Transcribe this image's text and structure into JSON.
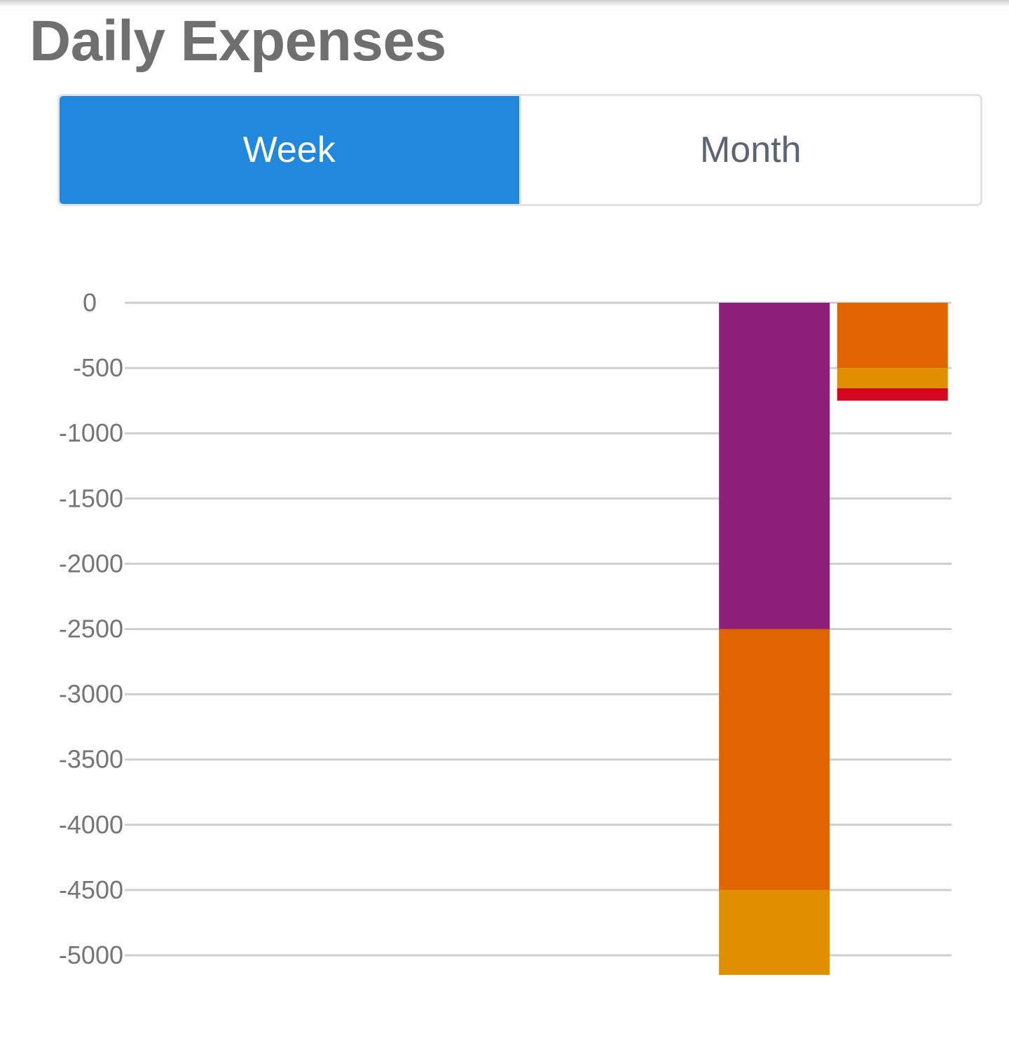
{
  "header": {
    "title": "Daily Expenses"
  },
  "period_toggle": {
    "options": [
      {
        "label": "Week",
        "selected": true
      },
      {
        "label": "Month",
        "selected": false
      }
    ]
  },
  "colors": {
    "accent": "#2188dd",
    "gridline": "#cfcfcf",
    "tick_text": "#757575"
  },
  "chart_data": {
    "type": "bar",
    "stacked": true,
    "ylim": [
      -5150,
      0
    ],
    "yticks": [
      0,
      -500,
      -1000,
      -1500,
      -2000,
      -2500,
      -3000,
      -3500,
      -4000,
      -4500,
      -5000
    ],
    "grid": true,
    "legend": "none",
    "categories": [
      "",
      "",
      "",
      "",
      "",
      "",
      ""
    ],
    "series": [
      {
        "color": "#8e1f7a",
        "values": [
          0,
          0,
          0,
          0,
          0,
          -2500,
          0
        ]
      },
      {
        "color": "#e06500",
        "values": [
          0,
          0,
          0,
          0,
          0,
          -2000,
          -500
        ]
      },
      {
        "color": "#e08f00",
        "values": [
          0,
          0,
          0,
          0,
          0,
          -650,
          -155
        ]
      },
      {
        "color": "#d5061f",
        "values": [
          0,
          0,
          0,
          0,
          0,
          0,
          -95
        ]
      }
    ]
  }
}
